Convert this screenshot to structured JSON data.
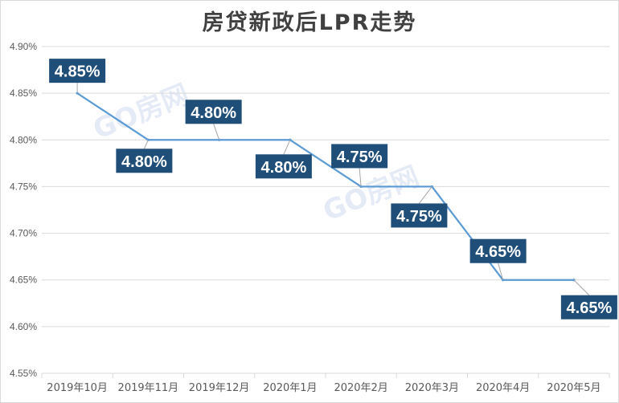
{
  "colors": {
    "line": "#5b9bd5",
    "label_bg": "#1f4e79",
    "label_text": "#ffffff",
    "grid": "#d9d9d9",
    "axis_text": "#595959"
  },
  "watermarks": [
    "GO房网",
    "GO房网"
  ],
  "chart_data": {
    "type": "line",
    "title": "房贷新政后LPR走势",
    "categories": [
      "2019年10月",
      "2019年11月",
      "2019年12月",
      "2020年1月",
      "2020年2月",
      "2020年3月",
      "2020年4月",
      "2020年5月"
    ],
    "series": [
      {
        "values": [
          4.85,
          4.8,
          4.8,
          4.8,
          4.75,
          4.75,
          4.65,
          4.65
        ]
      }
    ],
    "data_labels": [
      "4.85%",
      "4.80%",
      "4.80%",
      "4.80%",
      "4.75%",
      "4.75%",
      "4.65%",
      "4.65%"
    ],
    "ylim": [
      4.55,
      4.9
    ],
    "yticks": [
      4.55,
      4.6,
      4.65,
      4.7,
      4.75,
      4.8,
      4.85,
      4.9
    ],
    "ytick_labels": [
      "4.55%",
      "4.60%",
      "4.65%",
      "4.70%",
      "4.75%",
      "4.80%",
      "4.85%",
      "4.90%"
    ],
    "xlabel": "",
    "ylabel": "",
    "grid": true,
    "legend": "none"
  }
}
